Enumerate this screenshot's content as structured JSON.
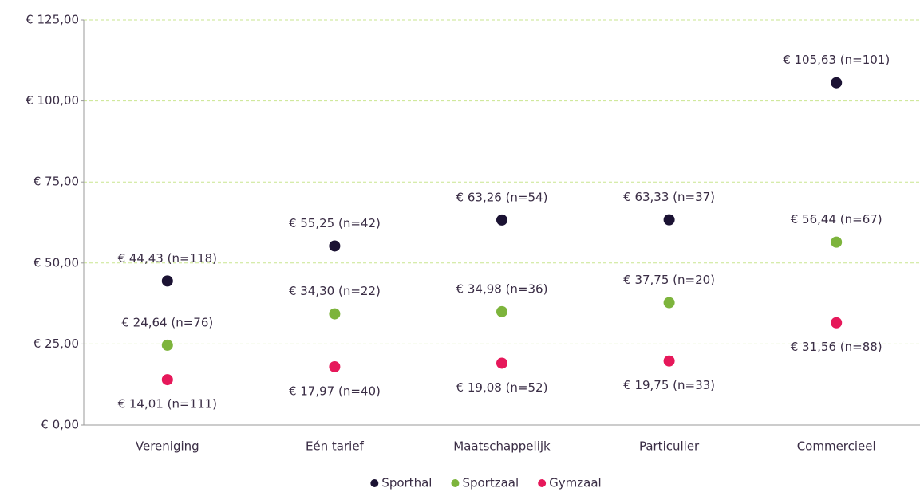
{
  "chart_data": {
    "type": "dot",
    "categories": [
      "Vereniging",
      "Eén tarief",
      "Maatschappelijk",
      "Particulier",
      "Commercieel"
    ],
    "series": [
      {
        "name": "Sporthal",
        "color": "#1b1233",
        "values": [
          44.43,
          55.25,
          63.26,
          63.33,
          105.63
        ],
        "value_labels": [
          "€ 44,43 (n=118)",
          "€ 55,25 (n=42)",
          "€ 63,26 (n=54)",
          "€ 63,33 (n=37)",
          "€ 105,63 (n=101)"
        ]
      },
      {
        "name": "Sportzaal",
        "color": "#7db43c",
        "values": [
          24.64,
          34.3,
          34.98,
          37.75,
          56.44
        ],
        "value_labels": [
          "€ 24,64 (n=76)",
          "€ 34,30 (n=22)",
          "€ 34,98 (n=36)",
          "€ 37,75 (n=20)",
          "€ 56,44 (n=67)"
        ]
      },
      {
        "name": "Gymzaal",
        "color": "#e6185a",
        "values": [
          14.01,
          17.97,
          19.08,
          19.75,
          31.56
        ],
        "value_labels": [
          "€ 14,01 (n=111)",
          "€ 17,97 (n=40)",
          "€ 19,08 (n=52)",
          "€ 19,75 (n=33)",
          "€ 31,56 (n=88)"
        ]
      }
    ],
    "ylim": [
      0,
      125
    ],
    "yticks": [
      {
        "value": 0,
        "label": "€ 0,00"
      },
      {
        "value": 25,
        "label": "€ 25,00"
      },
      {
        "value": 50,
        "label": "€ 50,00"
      },
      {
        "value": 75,
        "label": "€ 75,00"
      },
      {
        "value": 100,
        "label": "€ 100,00"
      },
      {
        "value": 125,
        "label": "€ 125,00"
      }
    ],
    "grid": true,
    "legend": "bottom"
  }
}
